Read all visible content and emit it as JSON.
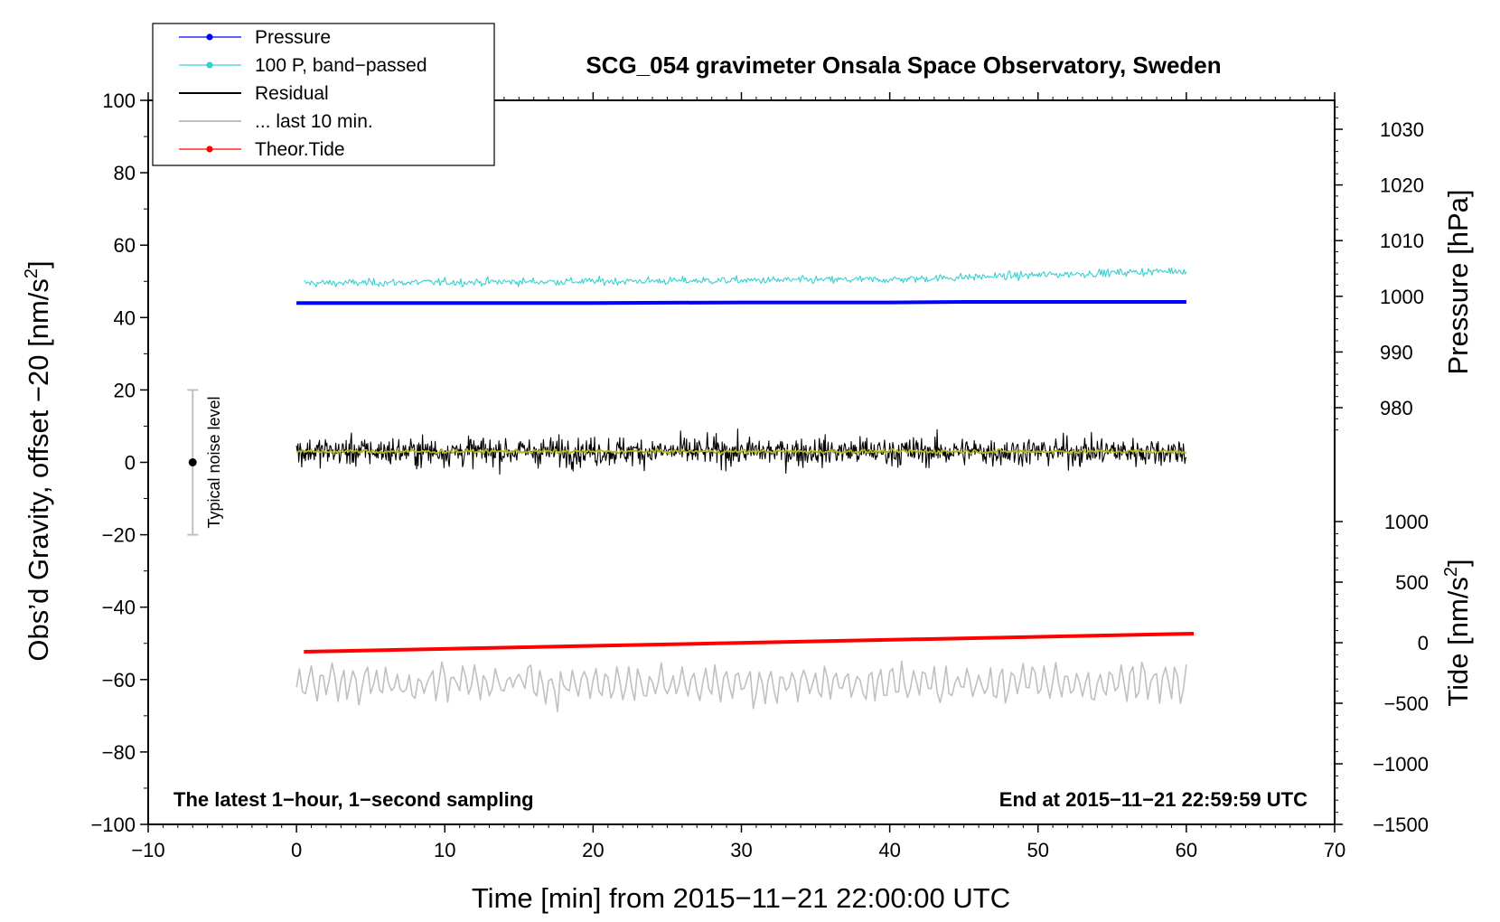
{
  "chart_data": {
    "type": "line",
    "title": "SCG_054 gravimeter Onsala Space Observatory, Sweden",
    "xlabel": "Time [min] from 2015−11−21 22:00:00 UTC",
    "ylabel_left": {
      "main": "Obs’d Gravity, offset −20 [nm/s",
      "sup": "2",
      "end": "]"
    },
    "ylabel_right_pressure": "Pressure [hPa]",
    "ylabel_right_tide": {
      "main": "Tide [nm/s",
      "sup": "2",
      "end": "]"
    },
    "xlim": [
      -10,
      70
    ],
    "ylim": [
      -100,
      100
    ],
    "pressure_range": [
      975,
      1035
    ],
    "tide_range": [
      -1500,
      1000
    ],
    "x_ticks": [
      -10,
      0,
      10,
      20,
      30,
      40,
      50,
      60,
      70
    ],
    "x_tick_labels": [
      "−10",
      "0",
      "10",
      "20",
      "30",
      "40",
      "50",
      "60",
      "70"
    ],
    "y_ticks": [
      -100,
      -80,
      -60,
      -40,
      -20,
      0,
      20,
      40,
      60,
      80,
      100
    ],
    "y_tick_labels": [
      "−100",
      "−80",
      "−60",
      "−40",
      "−20",
      "0",
      "20",
      "40",
      "60",
      "80",
      "100"
    ],
    "pressure_ticks": [
      980,
      990,
      1000,
      1010,
      1020,
      1030
    ],
    "pressure_tick_labels": [
      "980",
      "990",
      "1000",
      "1010",
      "1020",
      "1030"
    ],
    "tide_ticks": [
      -1500,
      -1000,
      -500,
      0,
      500,
      1000
    ],
    "tide_tick_labels": [
      "−1500",
      "−1000",
      "−500",
      "0",
      "500",
      "1000"
    ],
    "note_left": "The latest 1−hour, 1−second sampling",
    "note_right": "End at 2015−11−21 22:59:59 UTC",
    "noise_label": "Typical noise level",
    "noise_bar": {
      "x": -7,
      "y": 0,
      "low": -20,
      "high": 20
    },
    "legend": [
      {
        "label": "Pressure",
        "color": "#0000ff",
        "marker": true
      },
      {
        "label": "100 P, band−passed",
        "color": "#3ad0d0",
        "marker": true
      },
      {
        "label": "Residual",
        "color": "#000000",
        "marker": false
      },
      {
        "label": "... last 10 min.",
        "color": "#c0c0c0",
        "marker": false
      },
      {
        "label": "Theor.Tide",
        "color": "#ff0000",
        "marker": true
      }
    ],
    "series": [
      {
        "name": "Pressure",
        "axis": "pressure",
        "color": "#0000ff",
        "x": [
          0,
          10,
          20,
          30,
          40,
          45,
          50,
          60
        ],
        "y": [
          998.8,
          998.8,
          998.8,
          998.9,
          998.9,
          999.0,
          999.0,
          999.0
        ]
      },
      {
        "name": "100 P, band−passed",
        "axis": "gravity",
        "color": "#3ad0d0",
        "x_start": 0.5,
        "x_end": 60,
        "baseline": [
          [
            0.5,
            49.5
          ],
          [
            20,
            50.0
          ],
          [
            40,
            50.5
          ],
          [
            60,
            53.0
          ]
        ],
        "amplitude": 2.5
      },
      {
        "name": "Residual",
        "axis": "gravity",
        "color": "#000000",
        "x_start": 0,
        "x_end": 60,
        "baseline": 3,
        "amplitude_min": -12,
        "amplitude_max": 16
      },
      {
        "name": "Residual smoothed",
        "axis": "gravity",
        "color": "#b5b51f",
        "x_start": 0,
        "x_end": 60,
        "baseline": 3
      },
      {
        "name": "... last 10 min.",
        "axis": "gravity",
        "color": "#c0c0c0",
        "x_start": 0,
        "x_end": 60,
        "baseline": -61,
        "min": -73,
        "max": -49
      },
      {
        "name": "Theor.Tide",
        "axis": "tide",
        "color": "#ff0000",
        "x": [
          0.5,
          60.5
        ],
        "y": [
          -75,
          75
        ]
      }
    ]
  }
}
